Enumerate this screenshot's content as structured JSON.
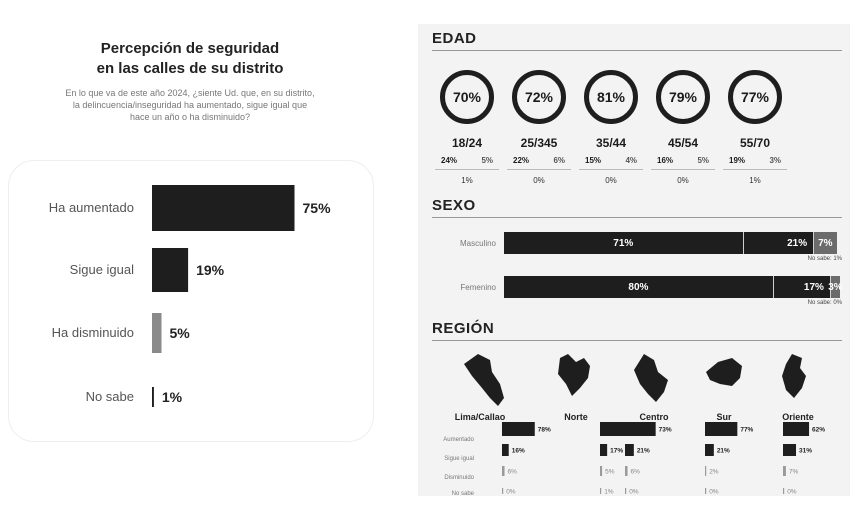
{
  "left": {
    "title_line1": "Percepción de seguridad",
    "title_line2": "en las calles de su distrito",
    "subtitle_line1": "En lo que va de este año 2024, ¿siente Ud. que, en su distrito,",
    "subtitle_line2": "la delincuencia/inseguridad ha aumentado, sigue igual que",
    "subtitle_line3": "hace un año o ha disminuido?"
  },
  "right": {
    "edad_title": "EDAD",
    "sexo_title": "SEXO",
    "region_title": "REGIÓN",
    "age_groups": [
      {
        "label": "18/24",
        "main": "70%",
        "a": "24%",
        "b": "5%",
        "c": "1%"
      },
      {
        "label": "25/345",
        "main": "72%",
        "a": "22%",
        "b": "6%",
        "c": "0%"
      },
      {
        "label": "35/44",
        "main": "81%",
        "a": "15%",
        "b": "4%",
        "c": "0%"
      },
      {
        "label": "45/54",
        "main": "79%",
        "a": "16%",
        "b": "5%",
        "c": "0%"
      },
      {
        "label": "55/70",
        "main": "77%",
        "a": "19%",
        "b": "3%",
        "c": "1%"
      }
    ],
    "sexo": [
      {
        "label": "Masculino",
        "segments": [
          {
            "text": "71%",
            "value": 71
          },
          {
            "text": "21%",
            "value": 21
          },
          {
            "text": "7%",
            "value": 7
          }
        ],
        "note": "No sabe: 1%"
      },
      {
        "label": "Femenino",
        "segments": [
          {
            "text": "80%",
            "value": 80
          },
          {
            "text": "17%",
            "value": 17
          },
          {
            "text": "3%",
            "value": 3
          }
        ],
        "note": "No sabe: 0%"
      }
    ],
    "region_names": [
      "Lima/Callao",
      "Norte",
      "Centro",
      "Sur",
      "Oriente"
    ],
    "region_row_labels": [
      "Aumentado",
      "Sigue igual",
      "Disminuido",
      "No sabe"
    ]
  },
  "colors": {
    "dark": "#1e1e1e",
    "mid": "#8a8a8a",
    "light": "#6b6b6b"
  },
  "chart_data": [
    {
      "type": "bar",
      "orientation": "horizontal",
      "categories": [
        "Ha aumentado",
        "Sigue igual",
        "Ha disminuido",
        "No sabe"
      ],
      "values": [
        75,
        19,
        5,
        1
      ],
      "labels": [
        "75%",
        "19%",
        "5%",
        "1%"
      ],
      "xlim": [
        0,
        100
      ]
    },
    {
      "type": "bar",
      "orientation": "horizontal",
      "categories": [
        "Aumentado",
        "Sigue igual",
        "Disminuido",
        "No sabe"
      ],
      "groups": [
        {
          "name": "Lima/Callao",
          "values": [
            78,
            16,
            6,
            0
          ],
          "labels": [
            "78%",
            "16%",
            "6%",
            "0%"
          ]
        },
        {
          "name": "Norte",
          "values": [
            77,
            17,
            5,
            1
          ],
          "labels": [
            "77%",
            "17%",
            "5%",
            "1%"
          ]
        },
        {
          "name": "Centro",
          "values": [
            73,
            21,
            6,
            0
          ],
          "labels": [
            "73%",
            "21%",
            "6%",
            "0%"
          ]
        },
        {
          "name": "Sur",
          "values": [
            77,
            21,
            2,
            0
          ],
          "labels": [
            "77%",
            "21%",
            "2%",
            "0%"
          ]
        },
        {
          "name": "Oriente",
          "values": [
            62,
            31,
            7,
            0
          ],
          "labels": [
            "62%",
            "31%",
            "7%",
            "0%"
          ]
        }
      ],
      "xlim": [
        0,
        100
      ]
    }
  ]
}
